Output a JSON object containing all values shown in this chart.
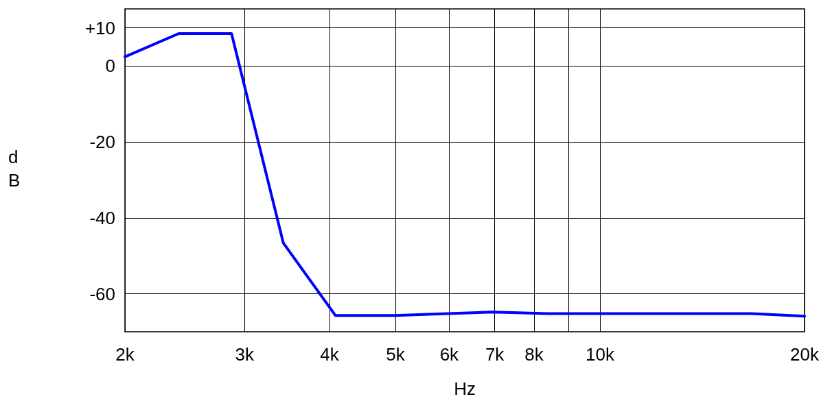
{
  "chart_data": {
    "type": "line",
    "xlabel": "Hz",
    "ylabel": "dB",
    "log": "x",
    "grid": true,
    "marker": "none",
    "line_style": "solid",
    "xlim": [
      2000,
      20000
    ],
    "ylim": [
      -70,
      15
    ],
    "xticks": [
      {
        "value": 2000,
        "label": "2k"
      },
      {
        "value": 3000,
        "label": "3k"
      },
      {
        "value": 4000,
        "label": "4k"
      },
      {
        "value": 5000,
        "label": "5k"
      },
      {
        "value": 6000,
        "label": "6k"
      },
      {
        "value": 7000,
        "label": "7k"
      },
      {
        "value": 8000,
        "label": "8k"
      },
      {
        "value": 9000,
        "label": null
      },
      {
        "value": 10000,
        "label": "10k"
      },
      {
        "value": 20000,
        "label": "20k"
      }
    ],
    "yticks": [
      -60,
      -40,
      -20,
      0,
      {
        "value": 10,
        "label": "+10"
      }
    ],
    "series": [
      {
        "color": "#0000ff",
        "x": [
          2000,
          2400,
          2870,
          3420,
          4080,
          4990,
          6940,
          8360,
          16700,
          20000
        ],
        "values": [
          2.4,
          8.5,
          8.5,
          -46.6,
          -65.7,
          -65.7,
          -64.8,
          -65.2,
          -65.2,
          -65.9
        ]
      }
    ]
  }
}
